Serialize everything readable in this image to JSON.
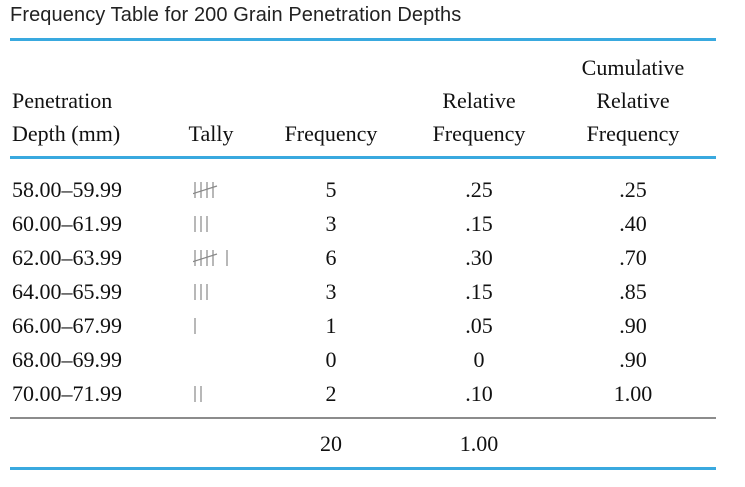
{
  "caption": "Frequency Table for 200 Grain Penetration Depths",
  "headers": {
    "depth": [
      "Penetration",
      "Depth (mm)"
    ],
    "tally": "Tally",
    "frequency": "Frequency",
    "relative": [
      "Relative",
      "Frequency"
    ],
    "cumulative": [
      "Cumulative",
      "Relative",
      "Frequency"
    ]
  },
  "rows": [
    {
      "depth": "58.00–59.99",
      "tally": 5,
      "frequency": "5",
      "relative": ".25",
      "cumulative": ".25"
    },
    {
      "depth": "60.00–61.99",
      "tally": 3,
      "frequency": "3",
      "relative": ".15",
      "cumulative": ".40"
    },
    {
      "depth": "62.00–63.99",
      "tally": 6,
      "frequency": "6",
      "relative": ".30",
      "cumulative": ".70"
    },
    {
      "depth": "64.00–65.99",
      "tally": 3,
      "frequency": "3",
      "relative": ".15",
      "cumulative": ".85"
    },
    {
      "depth": "66.00–67.99",
      "tally": 1,
      "frequency": "1",
      "relative": ".05",
      "cumulative": ".90"
    },
    {
      "depth": "68.00–69.99",
      "tally": 0,
      "frequency": "0",
      "relative": "0",
      "cumulative": ".90"
    },
    {
      "depth": "70.00–71.99",
      "tally": 2,
      "frequency": "2",
      "relative": ".10",
      "cumulative": "1.00"
    }
  ],
  "totals": {
    "frequency": "20",
    "relative": "1.00"
  },
  "colors": {
    "rule": "#39a9df",
    "divider": "#8c8c8c"
  }
}
